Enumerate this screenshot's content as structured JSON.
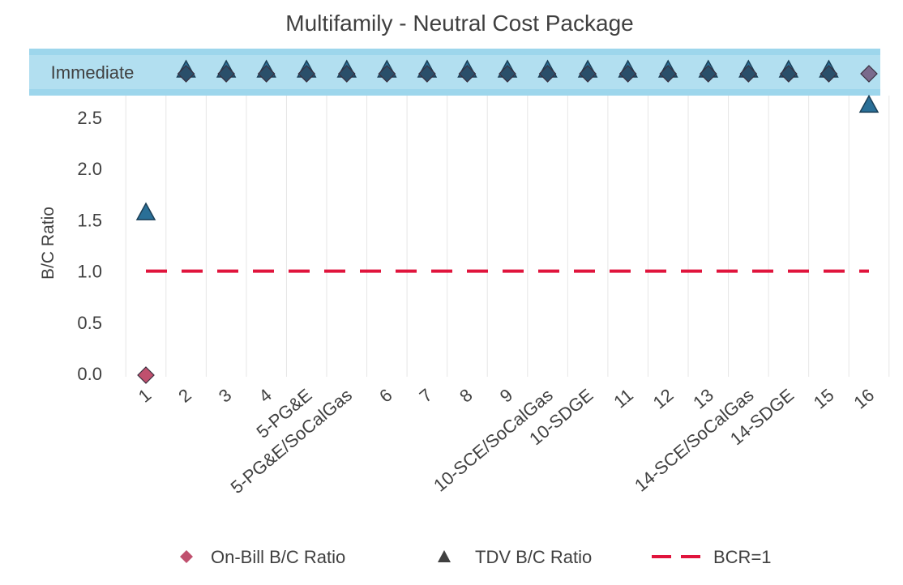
{
  "chart_data": {
    "type": "scatter",
    "title": "Multifamily - Neutral Cost Package",
    "ylabel": "B/C Ratio",
    "xlabel": "",
    "categories": [
      "1",
      "2",
      "3",
      "4",
      "5-PG&E",
      "5-PG&E/SoCalGas",
      "6",
      "7",
      "8",
      "9",
      "10-SCE/SoCalGas",
      "10-SDGE",
      "11",
      "12",
      "13",
      "14-SCE/SoCalGas",
      "14-SDGE",
      "15",
      "16"
    ],
    "y_ticks": [
      "0.0",
      "0.5",
      "1.0",
      "1.5",
      "2.0",
      "2.5"
    ],
    "ylim": [
      0,
      2.5
    ],
    "band_label": "Immediate",
    "series": [
      {
        "name": "On-Bill B/C Ratio",
        "marker": "diamond",
        "color": "#c0506e",
        "values": [
          0.0,
          "Immediate",
          "Immediate",
          "Immediate",
          "Immediate",
          "Immediate",
          "Immediate",
          "Immediate",
          "Immediate",
          "Immediate",
          "Immediate",
          "Immediate",
          "Immediate",
          "Immediate",
          "Immediate",
          "Immediate",
          "Immediate",
          "Immediate",
          "Immediate"
        ]
      },
      {
        "name": "TDV B/C Ratio",
        "marker": "triangle",
        "color": "#2a6f97",
        "values": [
          1.55,
          "Immediate",
          "Immediate",
          "Immediate",
          "Immediate",
          "Immediate",
          "Immediate",
          "Immediate",
          "Immediate",
          "Immediate",
          "Immediate",
          "Immediate",
          "Immediate",
          "Immediate",
          "Immediate",
          "Immediate",
          "Immediate",
          "Immediate",
          2.6
        ]
      },
      {
        "name": "BCR=1",
        "marker": "dash",
        "color": "#e0143c",
        "values": [
          1,
          1,
          1,
          1,
          1,
          1,
          1,
          1,
          1,
          1,
          1,
          1,
          1,
          1,
          1,
          1,
          1,
          1,
          1
        ]
      }
    ],
    "legend_position": "bottom",
    "grid": "vertical"
  }
}
